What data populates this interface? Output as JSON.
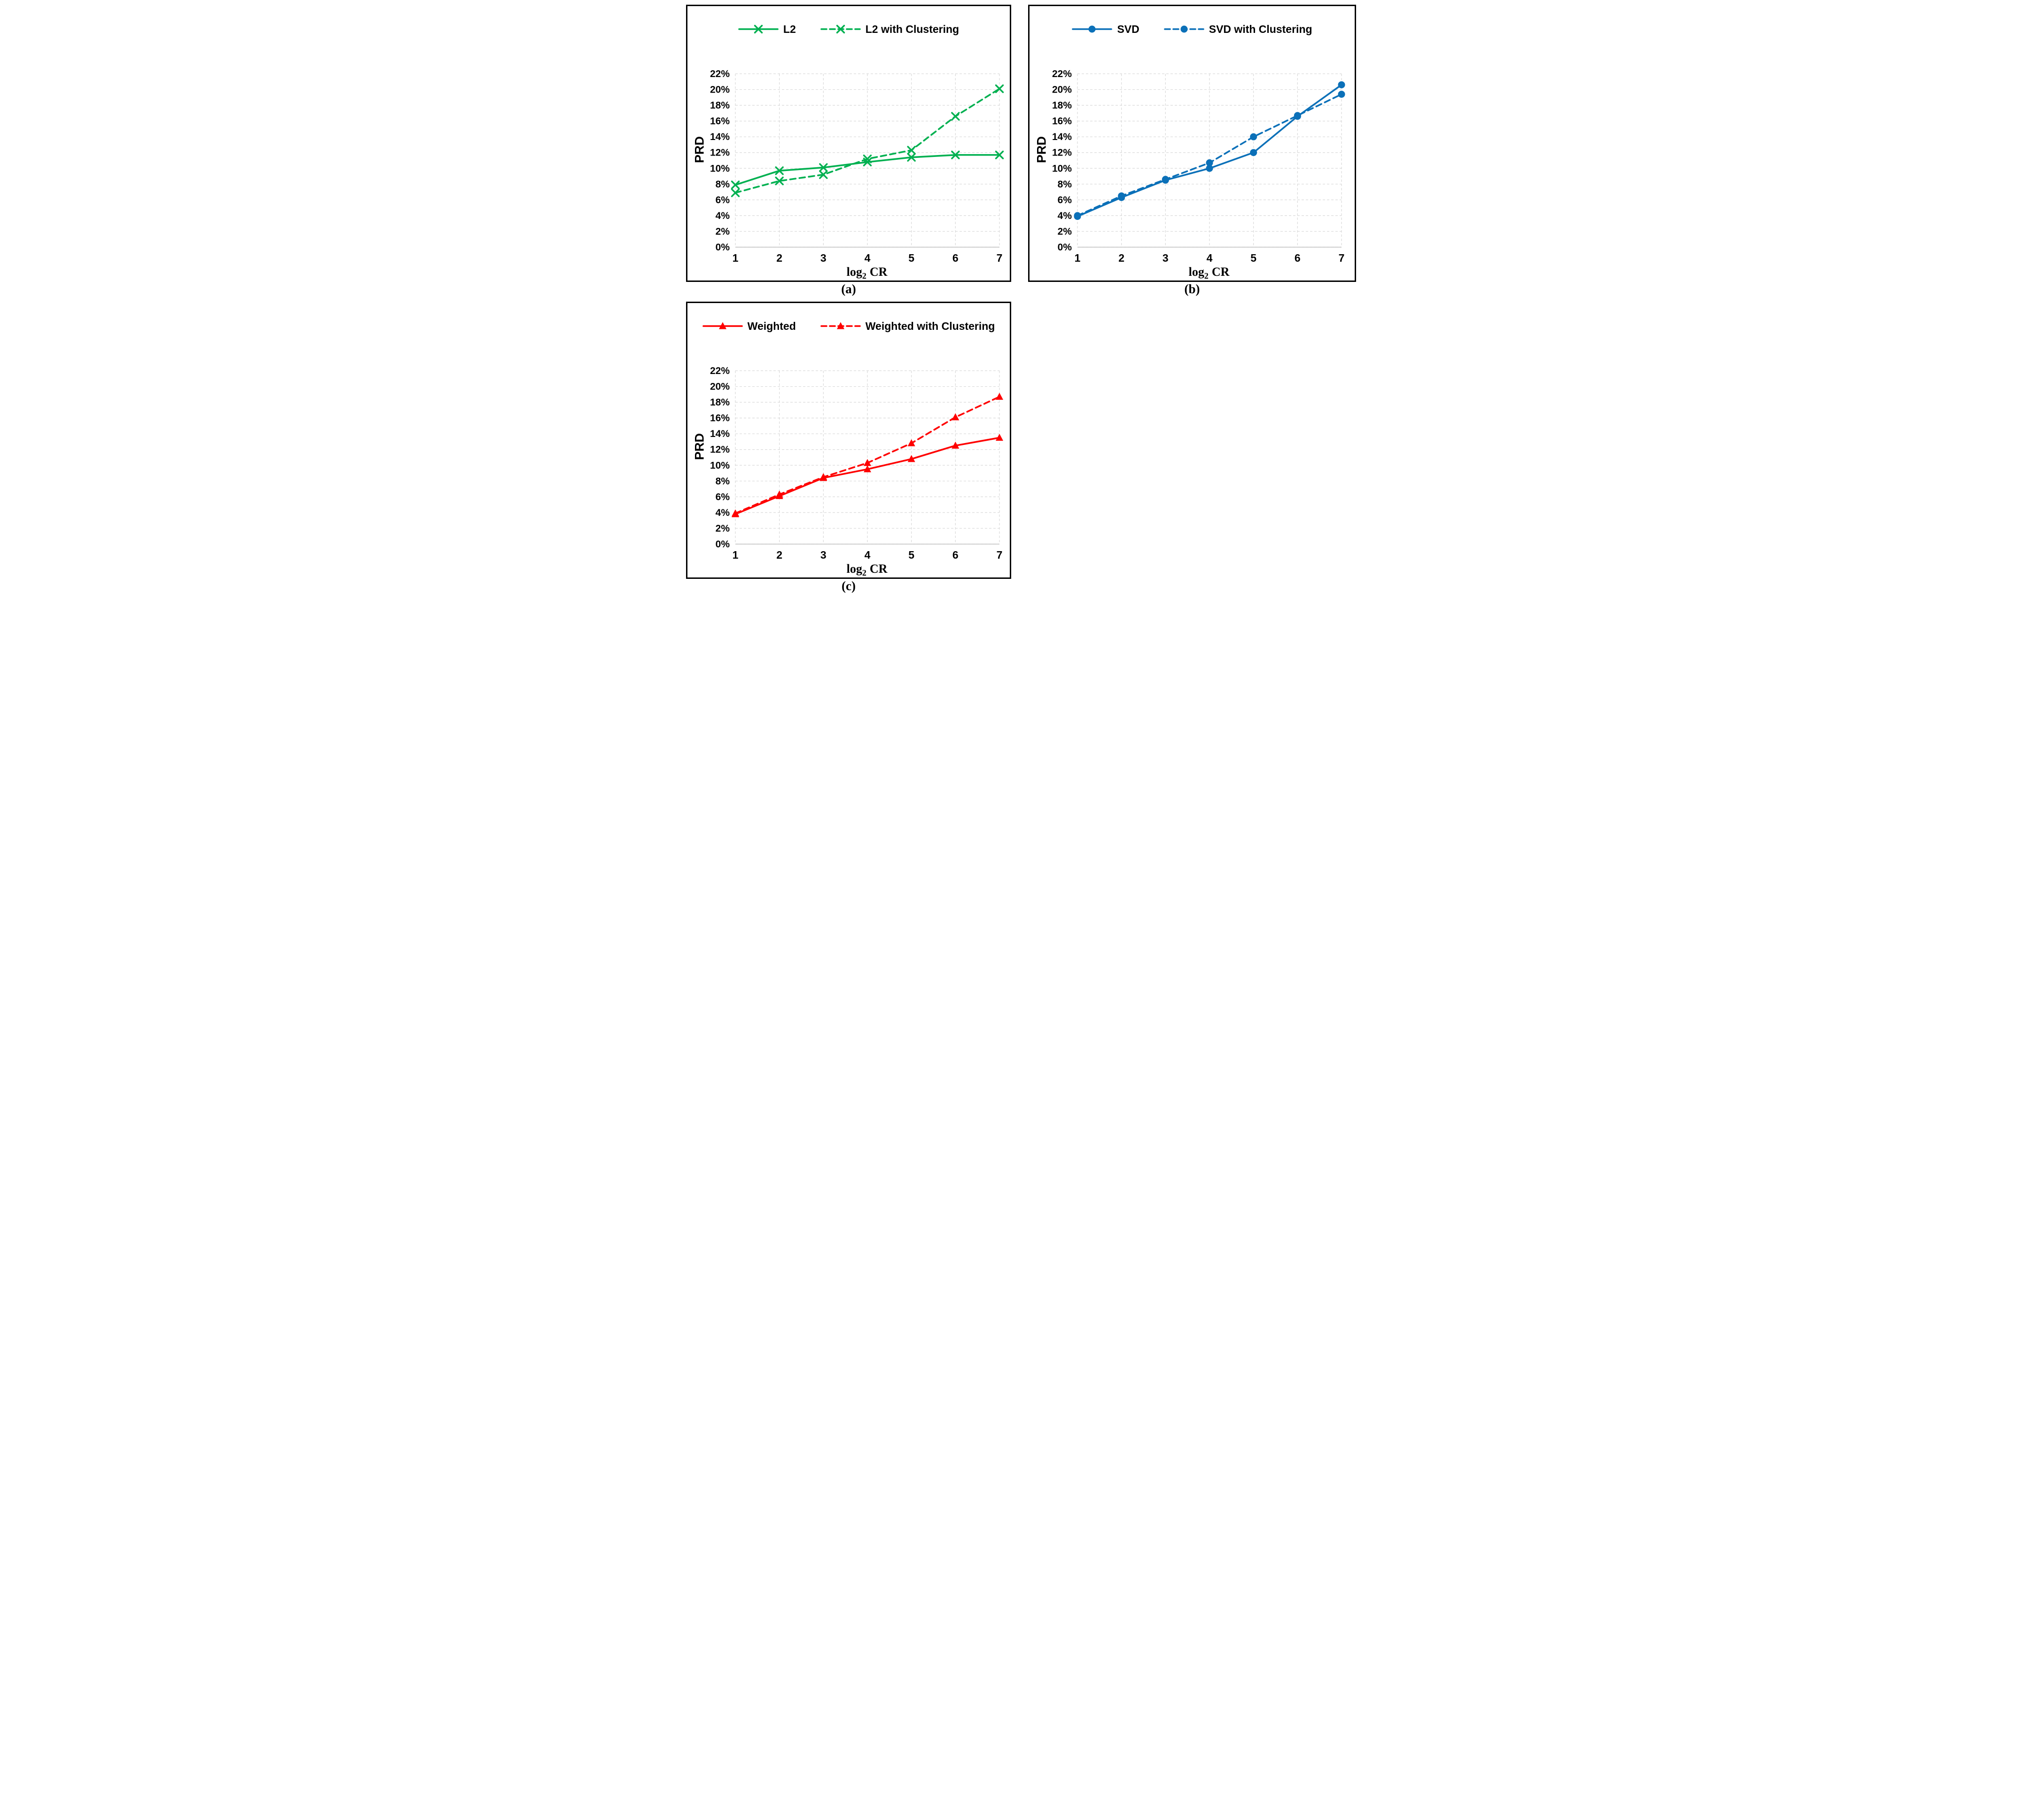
{
  "axis": {
    "ylabel": "PRD",
    "xlabel": {
      "log": "log",
      "sub": "2",
      "unit": "CR"
    },
    "y_tick_labels": [
      "22%",
      "20%",
      "18%",
      "16%",
      "14%",
      "12%",
      "10%",
      "8%",
      "6%",
      "4%",
      "2%",
      "0%"
    ],
    "x_tick_labels": [
      "1",
      "2",
      "3",
      "4",
      "5",
      "6",
      "7"
    ],
    "grid_color": "#D9D9D9",
    "axis_line_color": "#BFBFBF",
    "text_color": "#000000"
  },
  "chart_data": [
    {
      "id": "a",
      "caption": "(a)",
      "type": "line",
      "color": "#00B050",
      "marker": "x",
      "x": [
        1,
        2,
        3,
        4,
        5,
        6,
        7
      ],
      "xlabel": "log2 CR",
      "ylabel": "PRD",
      "ylim_percent": [
        0,
        22
      ],
      "y_tick_step_percent": 2,
      "grid": true,
      "legend_position": "top",
      "series": [
        {
          "name": "L2",
          "line_style": "solid",
          "values_percent": [
            7.9,
            9.7,
            10.1,
            10.8,
            11.4,
            11.7,
            11.7
          ]
        },
        {
          "name": "L2 with Clustering",
          "line_style": "dashed",
          "values_percent": [
            6.9,
            8.4,
            9.2,
            11.2,
            12.3,
            16.6,
            20.1
          ]
        }
      ]
    },
    {
      "id": "b",
      "caption": "(b)",
      "type": "line",
      "color": "#0B70B8",
      "marker": "circle",
      "x": [
        1,
        2,
        3,
        4,
        5,
        6,
        7
      ],
      "xlabel": "log2 CR",
      "ylabel": "PRD",
      "ylim_percent": [
        0,
        22
      ],
      "y_tick_step_percent": 2,
      "grid": true,
      "legend_position": "top",
      "series": [
        {
          "name": "SVD",
          "line_style": "solid",
          "values_percent": [
            3.9,
            6.3,
            8.5,
            10.0,
            12.0,
            16.6,
            20.6
          ]
        },
        {
          "name": "SVD with Clustering",
          "line_style": "dashed",
          "values_percent": [
            4.0,
            6.5,
            8.6,
            10.7,
            14.0,
            16.7,
            19.4
          ]
        }
      ]
    },
    {
      "id": "c",
      "caption": "(c)",
      "type": "line",
      "color": "#FE0000",
      "marker": "triangle",
      "x": [
        1,
        2,
        3,
        4,
        5,
        6,
        7
      ],
      "xlabel": "log2 CR",
      "ylabel": "PRD",
      "ylim_percent": [
        0,
        22
      ],
      "y_tick_step_percent": 2,
      "grid": true,
      "legend_position": "top",
      "series": [
        {
          "name": "Weighted",
          "line_style": "solid",
          "values_percent": [
            3.8,
            6.1,
            8.4,
            9.5,
            10.8,
            12.5,
            13.5
          ]
        },
        {
          "name": "Weighted with Clustering",
          "line_style": "dashed",
          "values_percent": [
            3.9,
            6.3,
            8.5,
            10.3,
            12.8,
            16.1,
            18.7
          ]
        }
      ]
    }
  ]
}
